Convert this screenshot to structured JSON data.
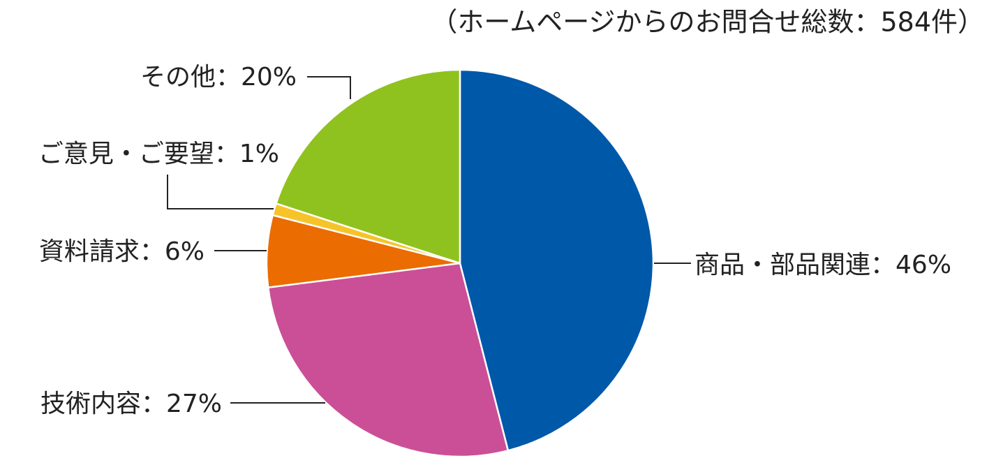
{
  "chart_data": {
    "type": "pie",
    "title": "（ホームページからのお問合せ総数：584件）",
    "categories": [
      "商品・部品関連",
      "技術内容",
      "資料請求",
      "ご意見・ご要望",
      "その他"
    ],
    "values": [
      46,
      27,
      6,
      1,
      20
    ],
    "value_labels": [
      "46%",
      "27%",
      "6%",
      "1%",
      "20%"
    ],
    "label_separator": "：",
    "colors": [
      "#0058a9",
      "#cb4f96",
      "#eb6c00",
      "#f6c42a",
      "#8fc21f"
    ]
  }
}
